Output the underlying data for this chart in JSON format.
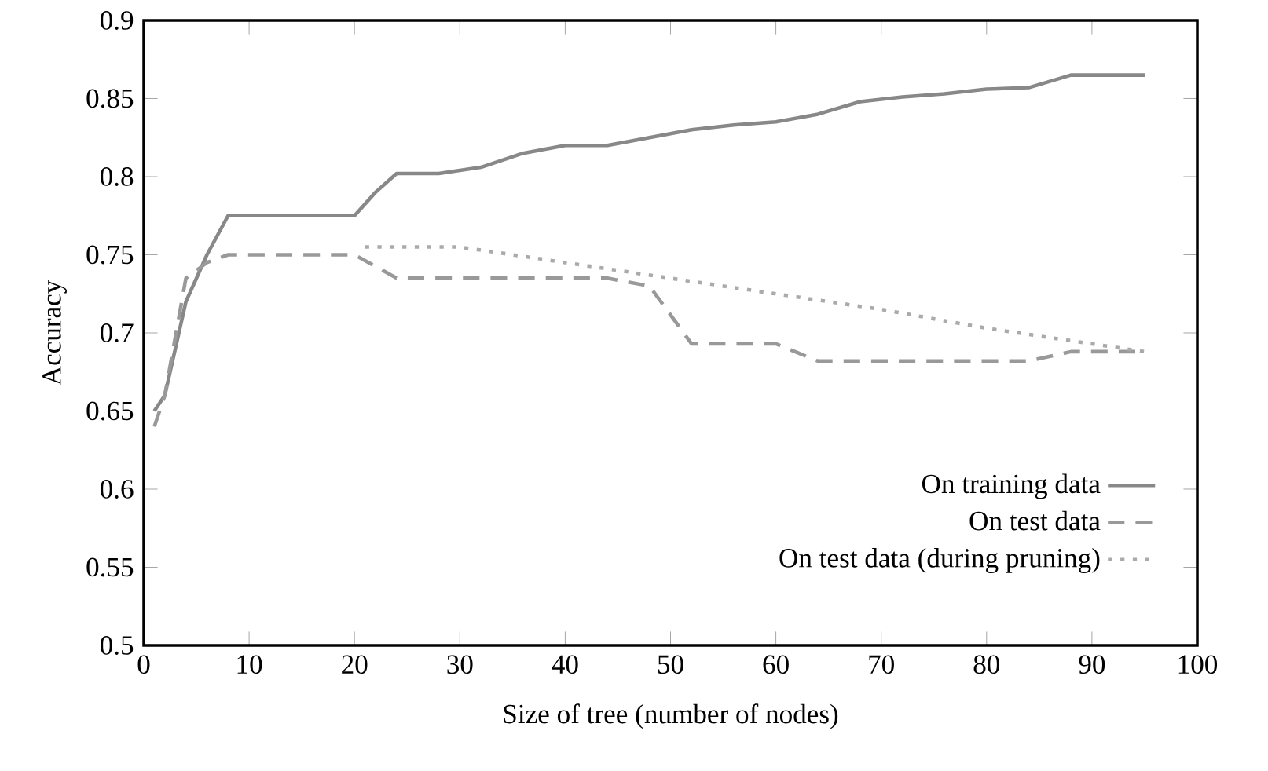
{
  "chart_data": {
    "type": "line",
    "xlabel": "Size of tree (number of nodes)",
    "ylabel": "Accuracy",
    "xlim": [
      0,
      100
    ],
    "ylim": [
      0.5,
      0.9
    ],
    "xticks": [
      0,
      10,
      20,
      30,
      40,
      50,
      60,
      70,
      80,
      90,
      100
    ],
    "yticks": [
      {
        "value": 0.5,
        "label": "0.5"
      },
      {
        "value": 0.55,
        "label": "0.55"
      },
      {
        "value": 0.6,
        "label": "0.6"
      },
      {
        "value": 0.65,
        "label": "0.65"
      },
      {
        "value": 0.7,
        "label": "0.7"
      },
      {
        "value": 0.75,
        "label": "0.75"
      },
      {
        "value": 0.8,
        "label": "0.8"
      },
      {
        "value": 0.85,
        "label": "0.85"
      },
      {
        "value": 0.9,
        "label": "0.9"
      }
    ],
    "legend": "bottom right",
    "grid": false,
    "marker": "none",
    "series": [
      {
        "name": "On training data",
        "color": "#888888",
        "line_style": "solid",
        "x": [
          1,
          2,
          4,
          6,
          8,
          20,
          22,
          24,
          28,
          32,
          36,
          40,
          44,
          48,
          52,
          56,
          60,
          64,
          68,
          72,
          76,
          80,
          84,
          88,
          95
        ],
        "values": [
          0.65,
          0.66,
          0.72,
          0.75,
          0.775,
          0.775,
          0.79,
          0.802,
          0.802,
          0.806,
          0.815,
          0.82,
          0.82,
          0.825,
          0.83,
          0.833,
          0.835,
          0.84,
          0.848,
          0.851,
          0.853,
          0.856,
          0.857,
          0.865,
          0.865
        ]
      },
      {
        "name": "On test data",
        "color": "#999999",
        "line_style": "dashed",
        "x": [
          1,
          2,
          4,
          6,
          8,
          20,
          24,
          44,
          48,
          52,
          60,
          64,
          84,
          88,
          95
        ],
        "values": [
          0.64,
          0.66,
          0.735,
          0.745,
          0.75,
          0.75,
          0.735,
          0.735,
          0.73,
          0.693,
          0.693,
          0.682,
          0.682,
          0.688,
          0.688
        ]
      },
      {
        "name": "On test data (during pruning)",
        "color": "#aaaaaa",
        "line_style": "dotted",
        "x": [
          21,
          30,
          40,
          50,
          60,
          70,
          80,
          90,
          95
        ],
        "values": [
          0.755,
          0.755,
          0.745,
          0.735,
          0.725,
          0.715,
          0.703,
          0.693,
          0.688
        ]
      }
    ]
  }
}
